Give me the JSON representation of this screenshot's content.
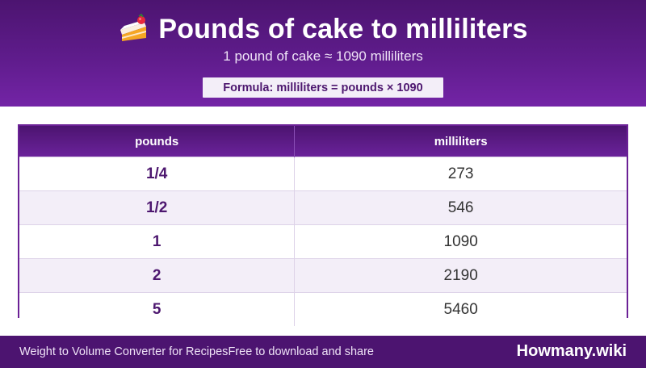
{
  "header": {
    "icon": "cake-icon",
    "title": "Pounds of cake to milliliters",
    "subtitle": "1 pound of cake ≈ 1090 milliliters",
    "formula": "Formula: milliliters = pounds × 1090"
  },
  "table": {
    "columns": [
      "pounds",
      "milliliters"
    ],
    "rows": [
      {
        "pounds": "1/4",
        "milliliters": "273"
      },
      {
        "pounds": "1/2",
        "milliliters": "546"
      },
      {
        "pounds": "1",
        "milliliters": "1090"
      },
      {
        "pounds": "2",
        "milliliters": "2190"
      },
      {
        "pounds": "5",
        "milliliters": "5460"
      }
    ]
  },
  "footer": {
    "app_name": "Weight to Volume Converter for Recipes",
    "tagline": "Free to download and share",
    "brand": "Howmany.wiki"
  },
  "colors": {
    "brand_purple": "#5f1c8c",
    "header_dark": "#4c1470",
    "stripe": "#f3eef8"
  }
}
